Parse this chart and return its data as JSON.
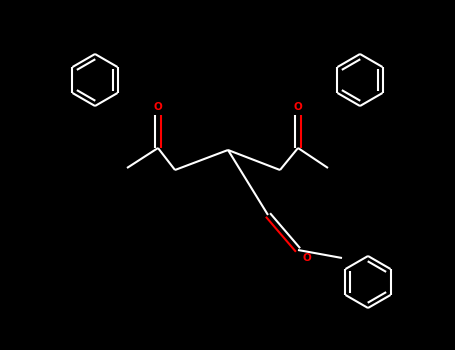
{
  "bg_color": "#000000",
  "bond_color": "#ffffff",
  "oxygen_color": "#ff0000",
  "lw": 1.5,
  "ring_r": 0.52,
  "fig_width": 4.55,
  "fig_height": 3.5,
  "dpi": 100,
  "xlim": [
    0,
    9.1
  ],
  "ylim": [
    0,
    7.0
  ]
}
